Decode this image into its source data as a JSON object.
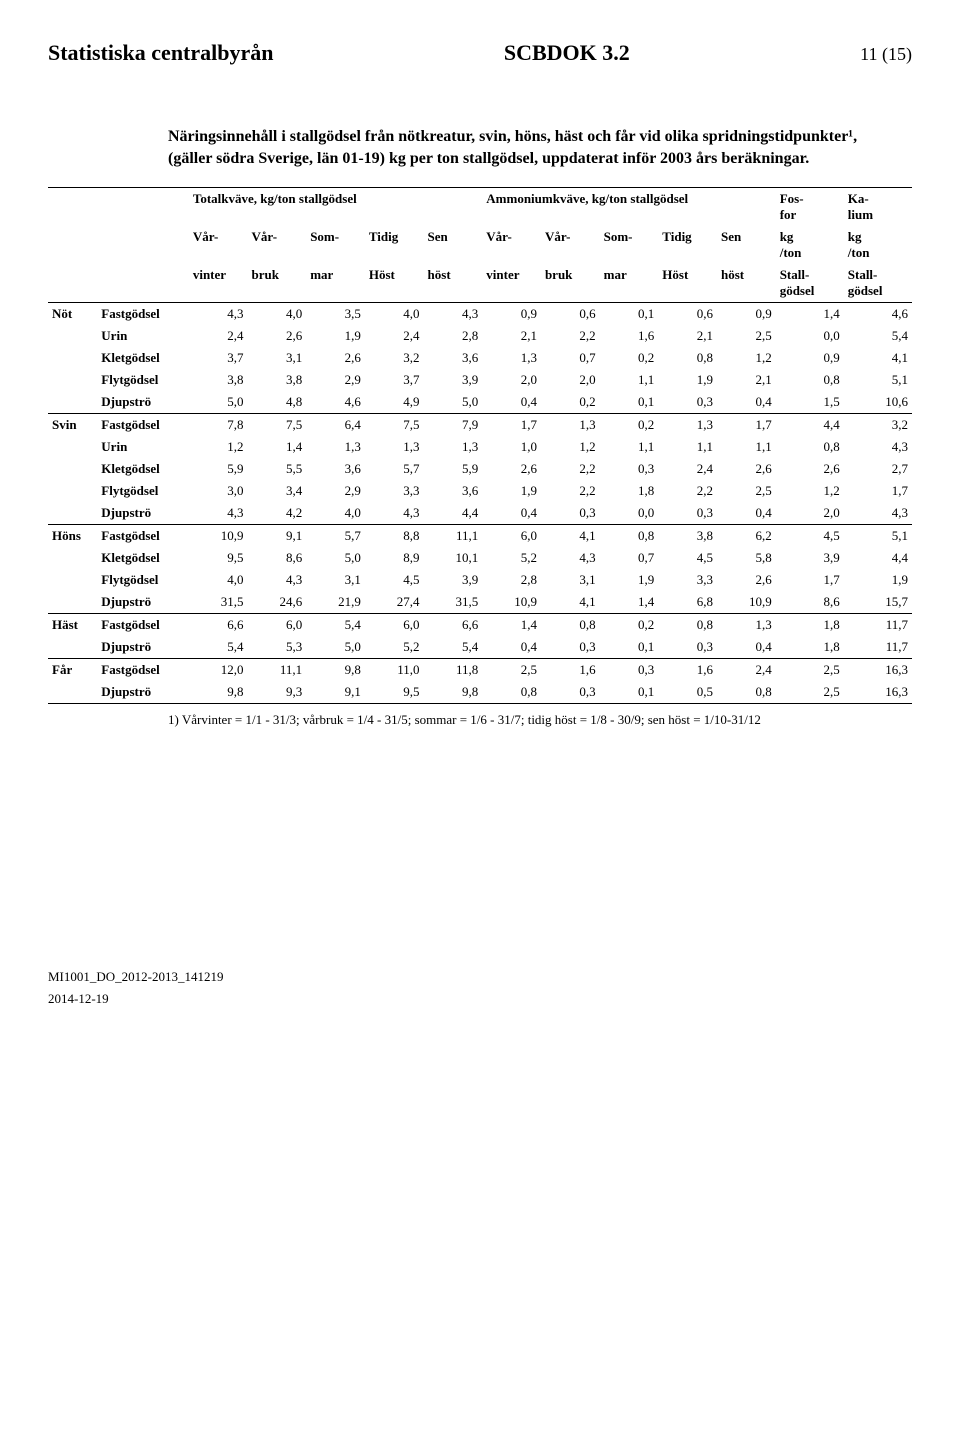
{
  "header": {
    "org": "Statistiska centralbyrån",
    "doc": "SCBDOK 3.2",
    "page": "11 (15)"
  },
  "title": "Näringsinnehåll i stallgödsel från nötkreatur, svin, höns, häst och får vid olika spridningstidpunkter¹, (gäller södra Sverige, län 01-19) kg per ton stallgödsel, uppdaterat inför 2003 års beräkningar.",
  "table": {
    "top1": {
      "a": "Totalkväve, kg/ton stallgödsel",
      "b": "Ammoniumkväve, kg/ton stallgödsel",
      "c": "Fos-\nfor",
      "d": "Ka-\nlium"
    },
    "top2": {
      "c1": "Vår-",
      "c2": "Vår-",
      "c3": "Som-",
      "c4": "Tidig",
      "c5": "Sen",
      "c6": "Vår-",
      "c7": "Vår-",
      "c8": "Som-",
      "c9": "Tidig",
      "c10": "Sen",
      "c11": "kg\n/ton",
      "c12": "kg\n/ton"
    },
    "top3": {
      "c1": "vinter",
      "c2": "bruk",
      "c3": "mar",
      "c4": "Höst",
      "c5": "höst",
      "c6": "vinter",
      "c7": "bruk",
      "c8": "mar",
      "c9": "Höst",
      "c10": "höst",
      "c11": "Stall-\ngödsel",
      "c12": "Stall-\ngödsel"
    },
    "groups": [
      {
        "cat": "Nöt",
        "rows": [
          {
            "sub": "Fastgödsel",
            "v": [
              "4,3",
              "4,0",
              "3,5",
              "4,0",
              "4,3",
              "0,9",
              "0,6",
              "0,1",
              "0,6",
              "0,9",
              "1,4",
              "4,6"
            ]
          },
          {
            "sub": "Urin",
            "v": [
              "2,4",
              "2,6",
              "1,9",
              "2,4",
              "2,8",
              "2,1",
              "2,2",
              "1,6",
              "2,1",
              "2,5",
              "0,0",
              "5,4"
            ]
          },
          {
            "sub": "Kletgödsel",
            "v": [
              "3,7",
              "3,1",
              "2,6",
              "3,2",
              "3,6",
              "1,3",
              "0,7",
              "0,2",
              "0,8",
              "1,2",
              "0,9",
              "4,1"
            ]
          },
          {
            "sub": "Flytgödsel",
            "v": [
              "3,8",
              "3,8",
              "2,9",
              "3,7",
              "3,9",
              "2,0",
              "2,0",
              "1,1",
              "1,9",
              "2,1",
              "0,8",
              "5,1"
            ]
          },
          {
            "sub": "Djupströ",
            "v": [
              "5,0",
              "4,8",
              "4,6",
              "4,9",
              "5,0",
              "0,4",
              "0,2",
              "0,1",
              "0,3",
              "0,4",
              "1,5",
              "10,6"
            ]
          }
        ]
      },
      {
        "cat": "Svin",
        "rows": [
          {
            "sub": "Fastgödsel",
            "v": [
              "7,8",
              "7,5",
              "6,4",
              "7,5",
              "7,9",
              "1,7",
              "1,3",
              "0,2",
              "1,3",
              "1,7",
              "4,4",
              "3,2"
            ]
          },
          {
            "sub": "Urin",
            "v": [
              "1,2",
              "1,4",
              "1,3",
              "1,3",
              "1,3",
              "1,0",
              "1,2",
              "1,1",
              "1,1",
              "1,1",
              "0,8",
              "4,3"
            ]
          },
          {
            "sub": "Kletgödsel",
            "v": [
              "5,9",
              "5,5",
              "3,6",
              "5,7",
              "5,9",
              "2,6",
              "2,2",
              "0,3",
              "2,4",
              "2,6",
              "2,6",
              "2,7"
            ]
          },
          {
            "sub": "Flytgödsel",
            "v": [
              "3,0",
              "3,4",
              "2,9",
              "3,3",
              "3,6",
              "1,9",
              "2,2",
              "1,8",
              "2,2",
              "2,5",
              "1,2",
              "1,7"
            ]
          },
          {
            "sub": "Djupströ",
            "v": [
              "4,3",
              "4,2",
              "4,0",
              "4,3",
              "4,4",
              "0,4",
              "0,3",
              "0,0",
              "0,3",
              "0,4",
              "2,0",
              "4,3"
            ]
          }
        ]
      },
      {
        "cat": "Höns",
        "rows": [
          {
            "sub": "Fastgödsel",
            "v": [
              "10,9",
              "9,1",
              "5,7",
              "8,8",
              "11,1",
              "6,0",
              "4,1",
              "0,8",
              "3,8",
              "6,2",
              "4,5",
              "5,1"
            ]
          },
          {
            "sub": "Kletgödsel",
            "v": [
              "9,5",
              "8,6",
              "5,0",
              "8,9",
              "10,1",
              "5,2",
              "4,3",
              "0,7",
              "4,5",
              "5,8",
              "3,9",
              "4,4"
            ]
          },
          {
            "sub": "Flytgödsel",
            "v": [
              "4,0",
              "4,3",
              "3,1",
              "4,5",
              "3,9",
              "2,8",
              "3,1",
              "1,9",
              "3,3",
              "2,6",
              "1,7",
              "1,9"
            ]
          },
          {
            "sub": "Djupströ",
            "v": [
              "31,5",
              "24,6",
              "21,9",
              "27,4",
              "31,5",
              "10,9",
              "4,1",
              "1,4",
              "6,8",
              "10,9",
              "8,6",
              "15,7"
            ]
          }
        ]
      },
      {
        "cat": "Häst",
        "rows": [
          {
            "sub": "Fastgödsel",
            "v": [
              "6,6",
              "6,0",
              "5,4",
              "6,0",
              "6,6",
              "1,4",
              "0,8",
              "0,2",
              "0,8",
              "1,3",
              "1,8",
              "11,7"
            ]
          },
          {
            "sub": "Djupströ",
            "v": [
              "5,4",
              "5,3",
              "5,0",
              "5,2",
              "5,4",
              "0,4",
              "0,3",
              "0,1",
              "0,3",
              "0,4",
              "1,8",
              "11,7"
            ]
          }
        ]
      },
      {
        "cat": "Får",
        "rows": [
          {
            "sub": "Fastgödsel",
            "v": [
              "12,0",
              "11,1",
              "9,8",
              "11,0",
              "11,8",
              "2,5",
              "1,6",
              "0,3",
              "1,6",
              "2,4",
              "2,5",
              "16,3"
            ]
          },
          {
            "sub": "Djupströ",
            "v": [
              "9,8",
              "9,3",
              "9,1",
              "9,5",
              "9,8",
              "0,8",
              "0,3",
              "0,1",
              "0,5",
              "0,8",
              "2,5",
              "16,3"
            ]
          }
        ]
      }
    ]
  },
  "footnote": "1) Vårvinter = 1/1 - 31/3; vårbruk = 1/4 - 31/5; sommar = 1/6 - 31/7; tidig höst = 1/8 - 30/9; sen höst = 1/10-31/12",
  "footer": {
    "code": "MI1001_DO_2012-2013_141219",
    "date": "2014-12-19"
  }
}
